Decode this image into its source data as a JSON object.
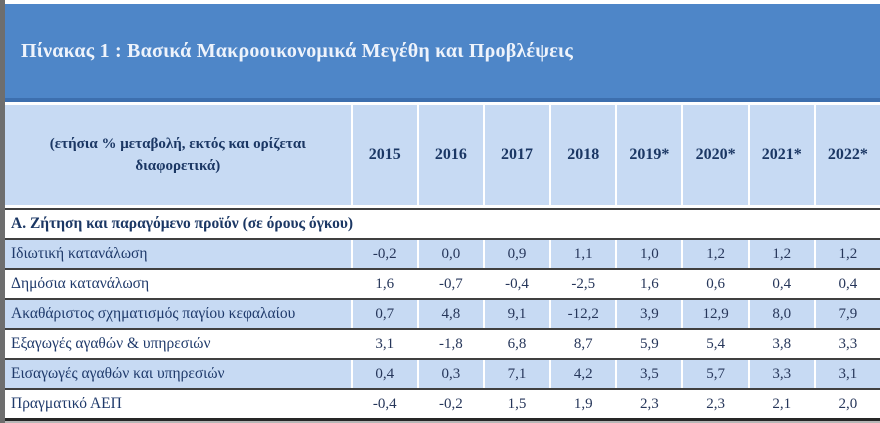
{
  "page": {
    "title": "Πίνακας 1 : Βασικά Μακροοικονομικά Μεγέθη και Προβλέψεις"
  },
  "table": {
    "unit_note": "(ετήσια % μεταβολή, εκτός και ορίζεται διαφορετικά)",
    "year_columns": [
      "2015",
      "2016",
      "2017",
      "2018",
      "2019*",
      "2020*",
      "2021*",
      "2022*"
    ],
    "section_header": "Α. Ζήτηση και παραγόμενο προϊόν (σε όρους όγκου)",
    "rows": [
      {
        "label": "Ιδιωτική κατανάλωση",
        "values": [
          "-0,2",
          "0,0",
          "0,9",
          "1,1",
          "1,0",
          "1,2",
          "1,2",
          "1,2"
        ]
      },
      {
        "label": "Δημόσια κατανάλωση",
        "values": [
          "1,6",
          "-0,7",
          "-0,4",
          "-2,5",
          "1,6",
          "0,6",
          "0,4",
          "0,4"
        ]
      },
      {
        "label": "Ακαθάριστος σχηματισμός παγίου κεφαλαίου",
        "values": [
          "0,7",
          "4,8",
          "9,1",
          "-12,2",
          "3,9",
          "12,9",
          "8,0",
          "7,9"
        ]
      },
      {
        "label": "Εξαγωγές αγαθών & υπηρεσιών",
        "values": [
          "3,1",
          "-1,8",
          "6,8",
          "8,7",
          "5,9",
          "5,4",
          "3,8",
          "3,3"
        ]
      },
      {
        "label": "Εισαγωγές αγαθών και υπηρεσιών",
        "values": [
          "0,4",
          "0,3",
          "7,1",
          "4,2",
          "3,5",
          "5,7",
          "3,3",
          "3,1"
        ]
      },
      {
        "label": "Πραγματικό ΑΕΠ",
        "values": [
          "-0,4",
          "-0,2",
          "1,5",
          "1,9",
          "2,3",
          "2,3",
          "2,1",
          "2,0"
        ]
      }
    ]
  },
  "colors": {
    "title_bar_blue": "#4e86c8",
    "title_bar_edge": "#3d6fae",
    "band_light_blue": "#c7daf3",
    "text_navy": "#1b3764",
    "row_divider": "#404040",
    "left_strip_gray": "#6e6e6e"
  },
  "chart_data": {
    "type": "table",
    "title": "Πίνακας 1 : Βασικά Μακροοικονομικά Μεγέθη και Προβλέψεις",
    "unit": "ετήσια % μεταβολή, εκτός και ορίζεται διαφορετικά",
    "columns": [
      2015,
      2016,
      2017,
      2018,
      2019,
      2020,
      2021,
      2022
    ],
    "forecast_years": [
      2019,
      2020,
      2021,
      2022
    ],
    "section": "Α. Ζήτηση και παραγόμενο προϊόν (σε όρους όγκου)",
    "series": [
      {
        "name": "Ιδιωτική κατανάλωση",
        "values": [
          -0.2,
          0.0,
          0.9,
          1.1,
          1.0,
          1.2,
          1.2,
          1.2
        ]
      },
      {
        "name": "Δημόσια κατανάλωση",
        "values": [
          1.6,
          -0.7,
          -0.4,
          -2.5,
          1.6,
          0.6,
          0.4,
          0.4
        ]
      },
      {
        "name": "Ακαθάριστος σχηματισμός παγίου κεφαλαίου",
        "values": [
          0.7,
          4.8,
          9.1,
          -12.2,
          3.9,
          12.9,
          8.0,
          7.9
        ]
      },
      {
        "name": "Εξαγωγές αγαθών & υπηρεσιών",
        "values": [
          3.1,
          -1.8,
          6.8,
          8.7,
          5.9,
          5.4,
          3.8,
          3.3
        ]
      },
      {
        "name": "Εισαγωγές αγαθών και υπηρεσιών",
        "values": [
          0.4,
          0.3,
          7.1,
          4.2,
          3.5,
          5.7,
          3.3,
          3.1
        ]
      },
      {
        "name": "Πραγματικό ΑΕΠ",
        "values": [
          -0.4,
          -0.2,
          1.5,
          1.9,
          2.3,
          2.3,
          2.1,
          2.0
        ]
      }
    ]
  }
}
